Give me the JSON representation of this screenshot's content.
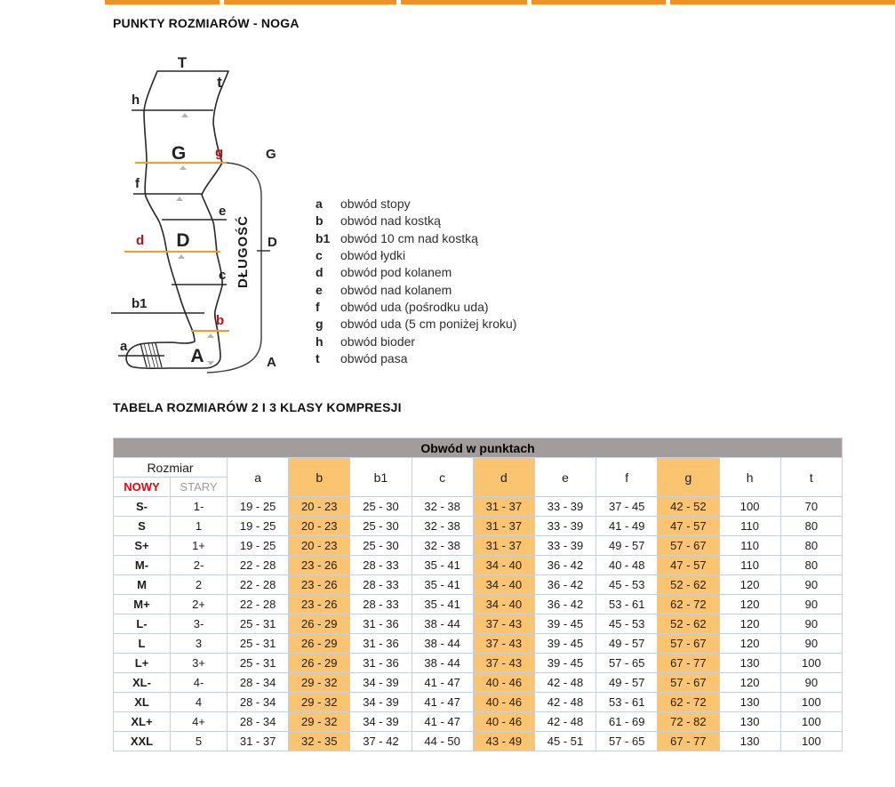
{
  "page_title": "PUNKTY ROZMIARÓW - NOGA",
  "diagram": {
    "points": {
      "T": "T",
      "t": "t",
      "h": "h",
      "G": "G",
      "g": "g",
      "f": "f",
      "e": "e",
      "D": "D",
      "d": "d",
      "c": "c",
      "b1": "b1",
      "b": "b",
      "a": "a",
      "A": "A"
    },
    "bracket": {
      "top": "G",
      "middle": "D",
      "bottom": "A",
      "length_label": "DŁUGOŚĆ"
    },
    "legend": [
      {
        "key": "a",
        "desc": "obwód stopy"
      },
      {
        "key": "b",
        "desc": "obwód nad kostką"
      },
      {
        "key": "b1",
        "desc": "obwód 10 cm nad kostką"
      },
      {
        "key": "c",
        "desc": "obwód łydki"
      },
      {
        "key": "d",
        "desc": "obwód pod kolanem"
      },
      {
        "key": "e",
        "desc": "obwód nad kolanem"
      },
      {
        "key": "f",
        "desc": "obwód uda (pośrodku uda)"
      },
      {
        "key": "g",
        "desc": "obwód uda (5 cm poniżej kroku)"
      },
      {
        "key": "h",
        "desc": "obwód bioder"
      },
      {
        "key": "t",
        "desc": "obwód pasa"
      }
    ]
  },
  "table": {
    "title": "TABELA ROZMIARÓW 2 I 3 KLASY KOMPRESJI",
    "header": "Obwód w punktach",
    "size_label": "Rozmiar",
    "new_label": "NOWY",
    "old_label": "STARY",
    "columns": [
      "a",
      "b",
      "b1",
      "c",
      "d",
      "e",
      "f",
      "g",
      "h",
      "t"
    ],
    "highlighted": [
      "b",
      "d",
      "g"
    ],
    "rows": [
      {
        "new": "S-",
        "old": "1-",
        "values": [
          "19 - 25",
          "20 - 23",
          "25 - 30",
          "32 - 38",
          "31 - 37",
          "33 - 39",
          "37 - 45",
          "42 - 52",
          "100",
          "70"
        ]
      },
      {
        "new": "S",
        "old": "1",
        "values": [
          "19 - 25",
          "20 - 23",
          "25 - 30",
          "32 - 38",
          "31 - 37",
          "33 - 39",
          "41 - 49",
          "47 - 57",
          "110",
          "80"
        ]
      },
      {
        "new": "S+",
        "old": "1+",
        "values": [
          "19 - 25",
          "20 - 23",
          "25 - 30",
          "32 - 38",
          "31 - 37",
          "33 - 39",
          "49 - 57",
          "57 - 67",
          "110",
          "80"
        ]
      },
      {
        "new": "M-",
        "old": "2-",
        "values": [
          "22 - 28",
          "23 - 26",
          "28 - 33",
          "35 - 41",
          "34 - 40",
          "36 - 42",
          "40 - 48",
          "47 - 57",
          "110",
          "80"
        ]
      },
      {
        "new": "M",
        "old": "2",
        "values": [
          "22 - 28",
          "23 - 26",
          "28 - 33",
          "35 - 41",
          "34 - 40",
          "36 - 42",
          "45 - 53",
          "52 - 62",
          "120",
          "90"
        ]
      },
      {
        "new": "M+",
        "old": "2+",
        "values": [
          "22 - 28",
          "23 - 26",
          "28 - 33",
          "35 - 41",
          "34 - 40",
          "36 - 42",
          "53 - 61",
          "62 - 72",
          "120",
          "90"
        ]
      },
      {
        "new": "L-",
        "old": "3-",
        "values": [
          "25 - 31",
          "26 - 29",
          "31 - 36",
          "38 - 44",
          "37 - 43",
          "39 - 45",
          "45 - 53",
          "52 - 62",
          "120",
          "90"
        ]
      },
      {
        "new": "L",
        "old": "3",
        "values": [
          "25 - 31",
          "26 - 29",
          "31 - 36",
          "38 - 44",
          "37 - 43",
          "39 - 45",
          "49 - 57",
          "57 - 67",
          "120",
          "90"
        ]
      },
      {
        "new": "L+",
        "old": "3+",
        "values": [
          "25 - 31",
          "26 - 29",
          "31 - 36",
          "38 - 44",
          "37 - 43",
          "39 - 45",
          "57 - 65",
          "67 - 77",
          "130",
          "100"
        ]
      },
      {
        "new": "XL-",
        "old": "4-",
        "values": [
          "28 - 34",
          "29 - 32",
          "34 - 39",
          "41 - 47",
          "40 - 46",
          "42 - 48",
          "49 - 57",
          "57 - 67",
          "120",
          "90"
        ]
      },
      {
        "new": "XL",
        "old": "4",
        "values": [
          "28 - 34",
          "29 - 32",
          "34 - 39",
          "41 - 47",
          "40 - 46",
          "42 - 48",
          "53 - 61",
          "62 - 72",
          "130",
          "100"
        ]
      },
      {
        "new": "XL+",
        "old": "4+",
        "values": [
          "28 - 34",
          "29 - 32",
          "34 - 39",
          "41 - 47",
          "40 - 46",
          "42 - 48",
          "61 - 69",
          "72 - 82",
          "130",
          "100"
        ]
      },
      {
        "new": "XXL",
        "old": "5",
        "values": [
          "31 - 37",
          "32 - 35",
          "37 - 42",
          "44 - 50",
          "43 - 49",
          "45 - 51",
          "57 - 65",
          "67 - 77",
          "130",
          "100"
        ]
      }
    ]
  },
  "colors": {
    "accent_orange": "#ee9127",
    "highlight_orange": "#fac471",
    "table_header_gray": "#a39b9c",
    "diagram_line_orange": "#f29d26",
    "red_point_label": "#b5121b",
    "new_red": "#e30613",
    "old_gray": "#9c9c9c",
    "border_gray": "#c7cfd8"
  }
}
